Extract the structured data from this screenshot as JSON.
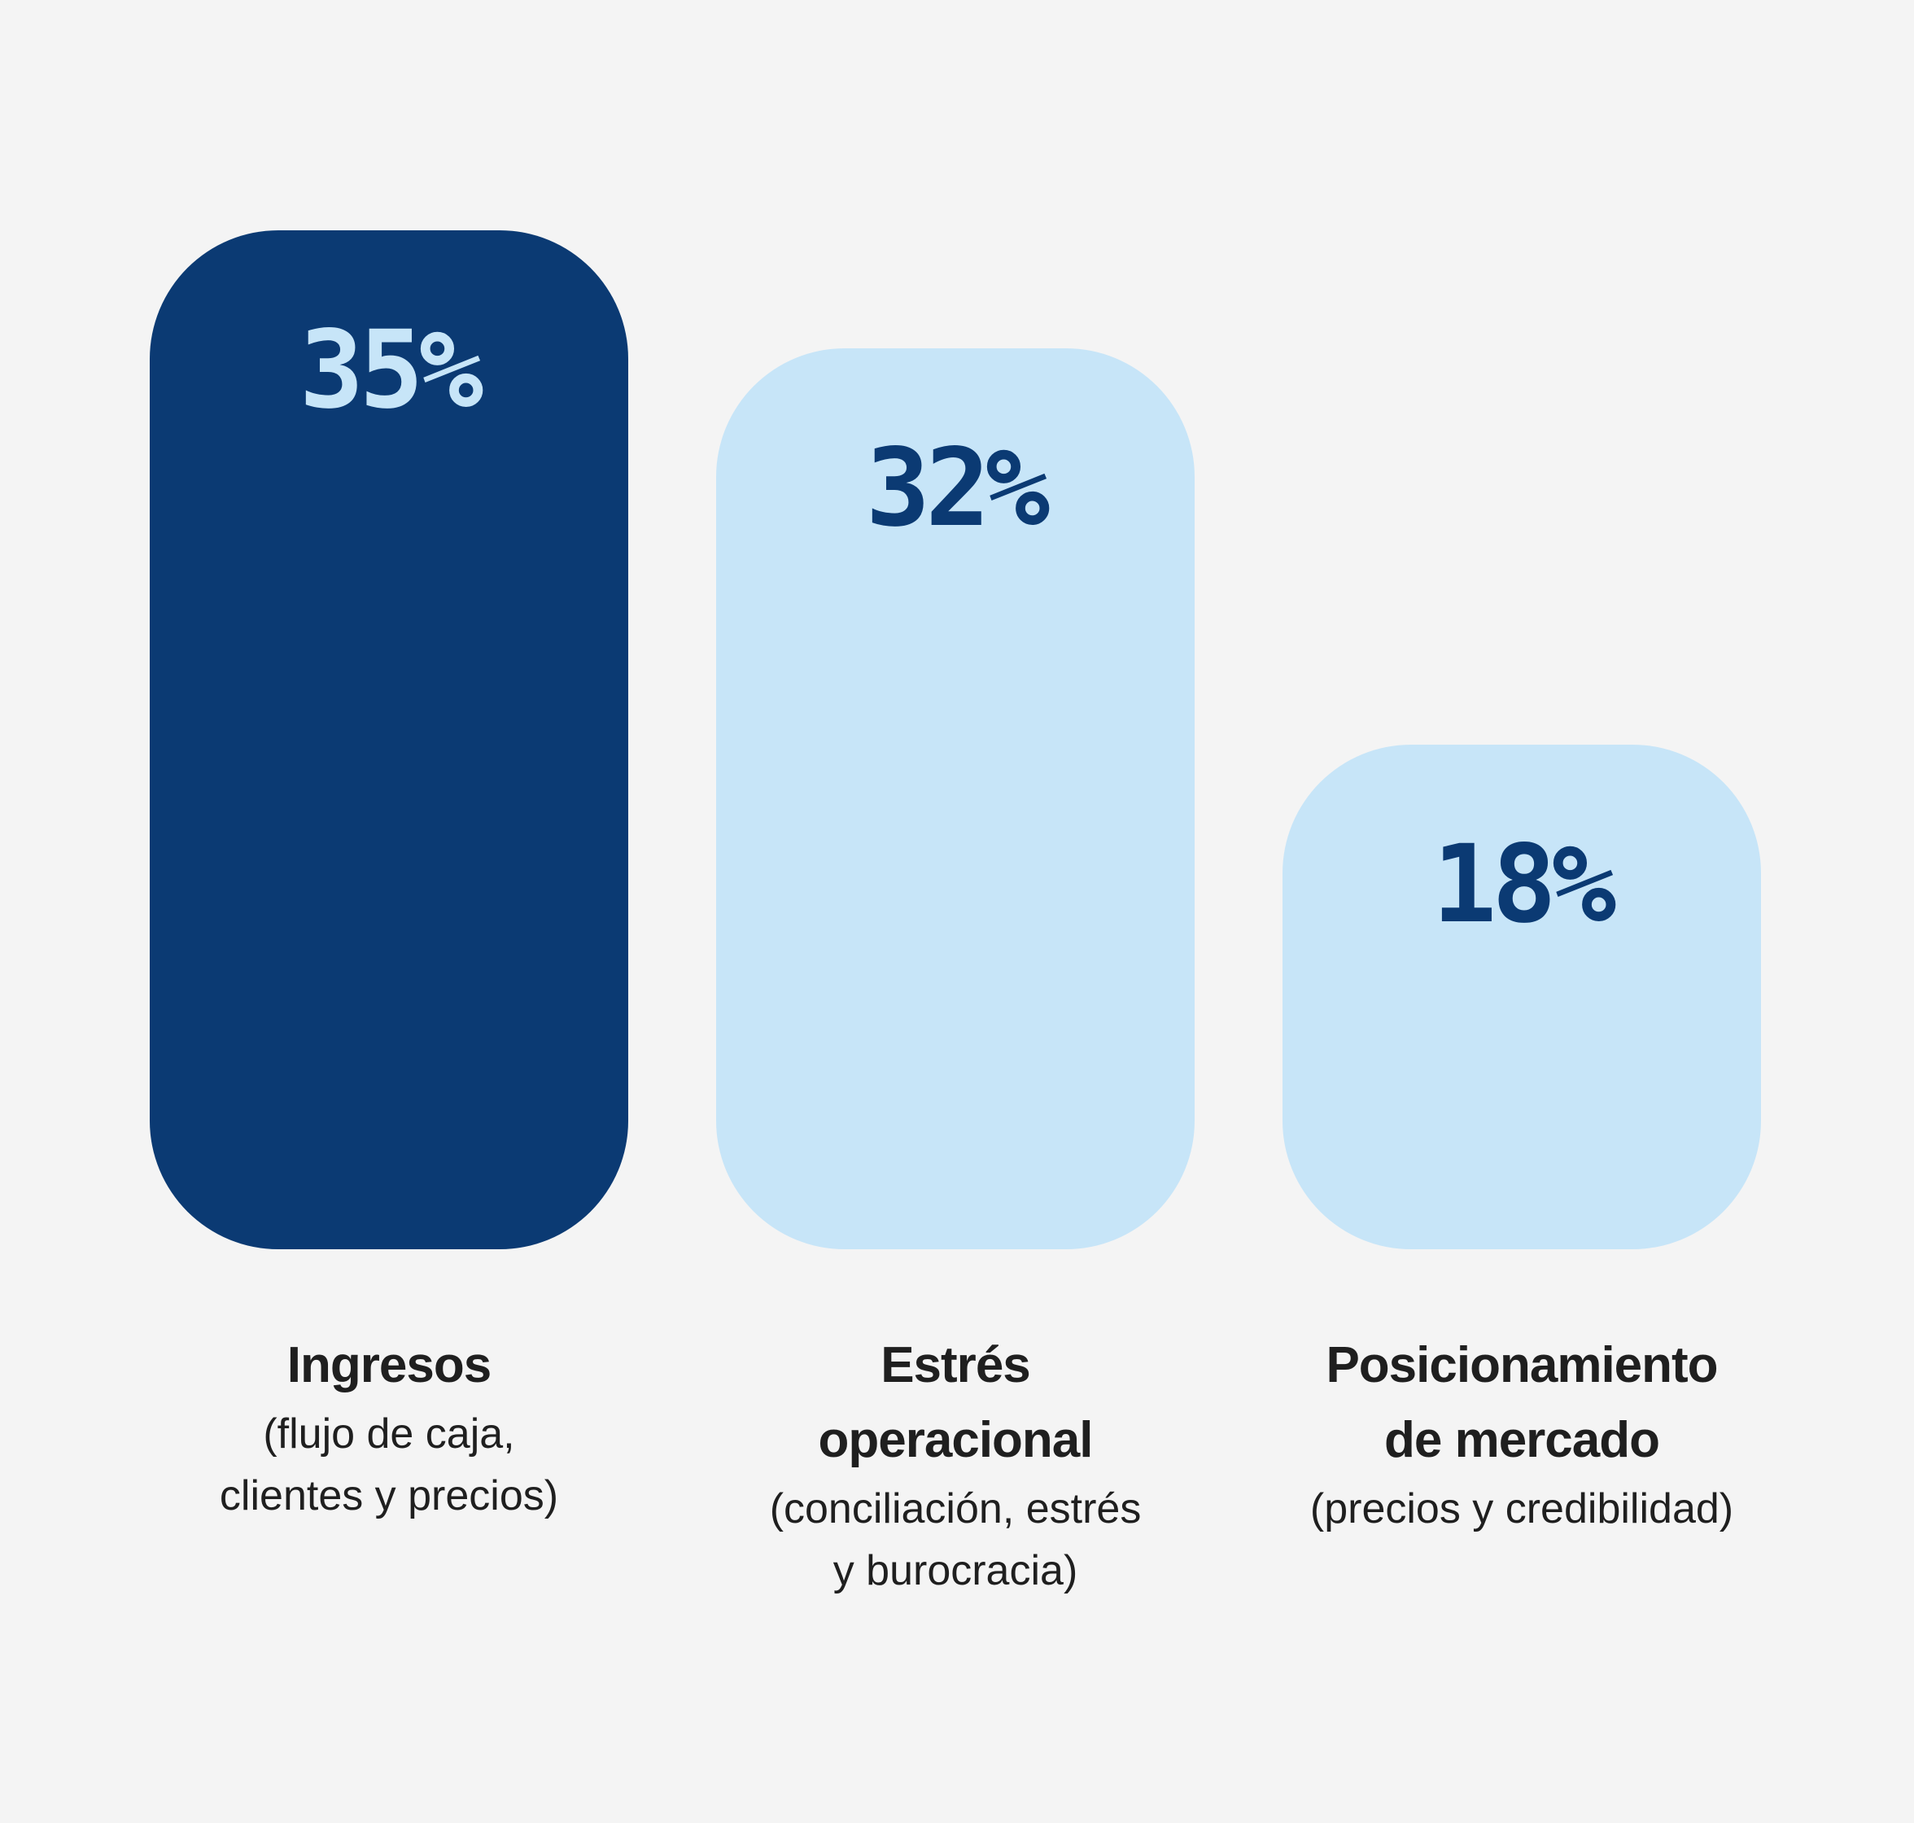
{
  "chart_data": {
    "type": "bar",
    "categories": [
      "Ingresos",
      "Estrés operacional",
      "Posicionamiento de mercado"
    ],
    "values": [
      35,
      32,
      18
    ],
    "data_labels": [
      "35%",
      "32%",
      "18%"
    ],
    "subtitles": [
      "(flujo de caja, clientes y precios)",
      "(conciliación, estrés y burocracia)",
      "(precios y credibilidad)"
    ],
    "title_lines": [
      [
        "Ingresos"
      ],
      [
        "Estrés",
        "operacional"
      ],
      [
        "Posicionamiento",
        "de mercado"
      ]
    ],
    "subtitle_lines": [
      [
        "(flujo de caja,",
        "clientes y precios)"
      ],
      [
        "(conciliación, estrés",
        "y burocracia)"
      ],
      [
        "(precios y credibilidad)"
      ]
    ],
    "bar_colors": [
      "#0b3a73",
      "#c7e5f8",
      "#c7e5f8"
    ],
    "label_colors": [
      "#c7e5f8",
      "#0b3a73",
      "#0b3a73"
    ],
    "unit": "%",
    "ylim": [
      0,
      35
    ],
    "grid": false,
    "legend": "none"
  }
}
